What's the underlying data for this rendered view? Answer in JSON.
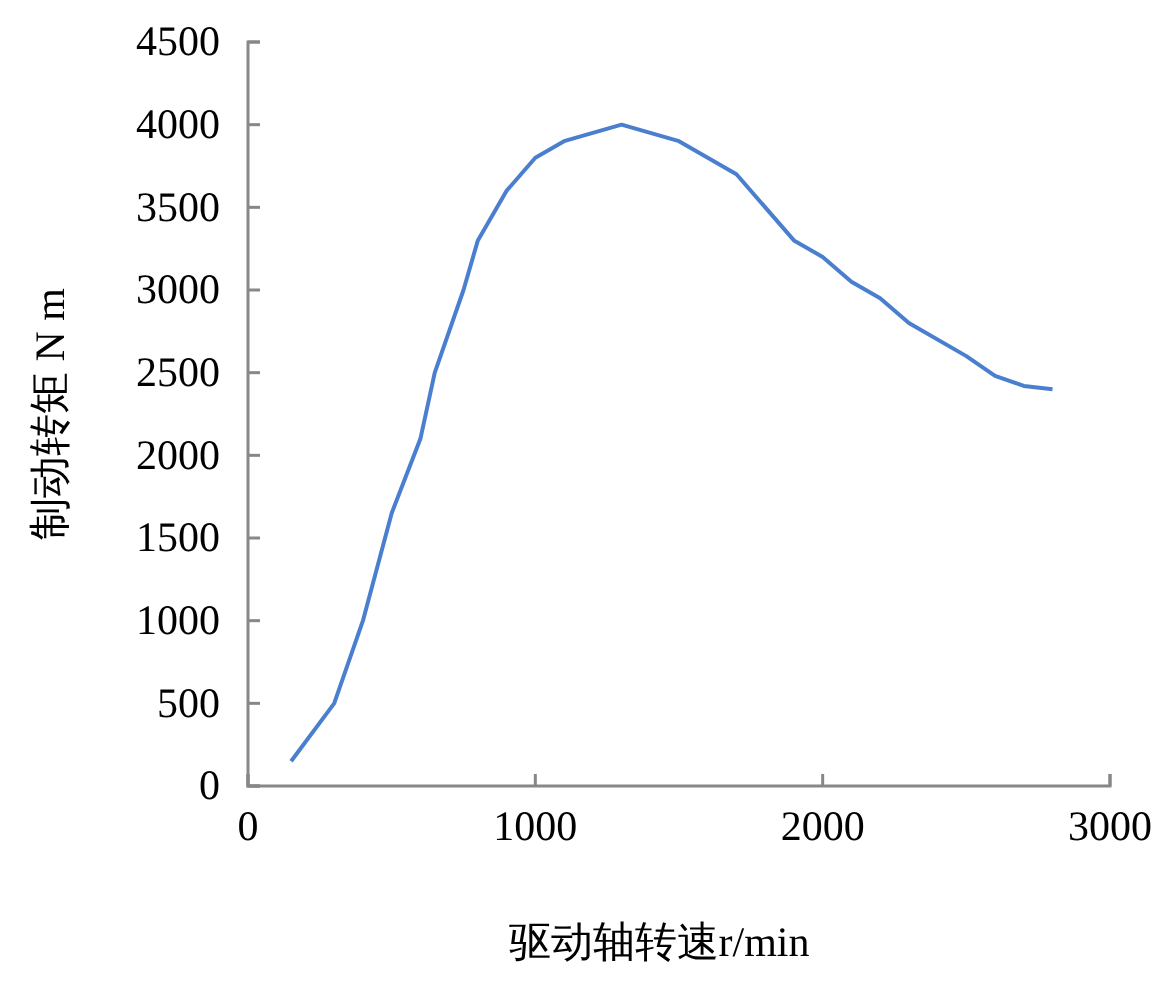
{
  "chart_data": {
    "type": "line",
    "xlabel": "驱动轴转速r/min",
    "ylabel": "制动转矩 N m",
    "xlim": [
      0,
      3000
    ],
    "xticks": [
      0,
      1000,
      2000,
      3000
    ],
    "ylim": [
      0,
      4500
    ],
    "yticks": [
      0,
      500,
      1000,
      1500,
      2000,
      2500,
      3000,
      3500,
      4000,
      4500
    ],
    "grid": false,
    "marker": "none",
    "line_style": "solid",
    "series": [
      {
        "color": "#4a7fd0",
        "x": [
          150,
          300,
          400,
          500,
          600,
          650,
          750,
          800,
          900,
          1000,
          1100,
          1300,
          1500,
          1700,
          1900,
          2000,
          2100,
          2200,
          2300,
          2500,
          2600,
          2700,
          2800
        ],
        "values": [
          150,
          500,
          1000,
          1650,
          2100,
          2500,
          3000,
          3300,
          3600,
          3800,
          3900,
          4000,
          3900,
          3700,
          3300,
          3200,
          3050,
          2950,
          2800,
          2600,
          2480,
          2420,
          2400
        ]
      }
    ]
  }
}
